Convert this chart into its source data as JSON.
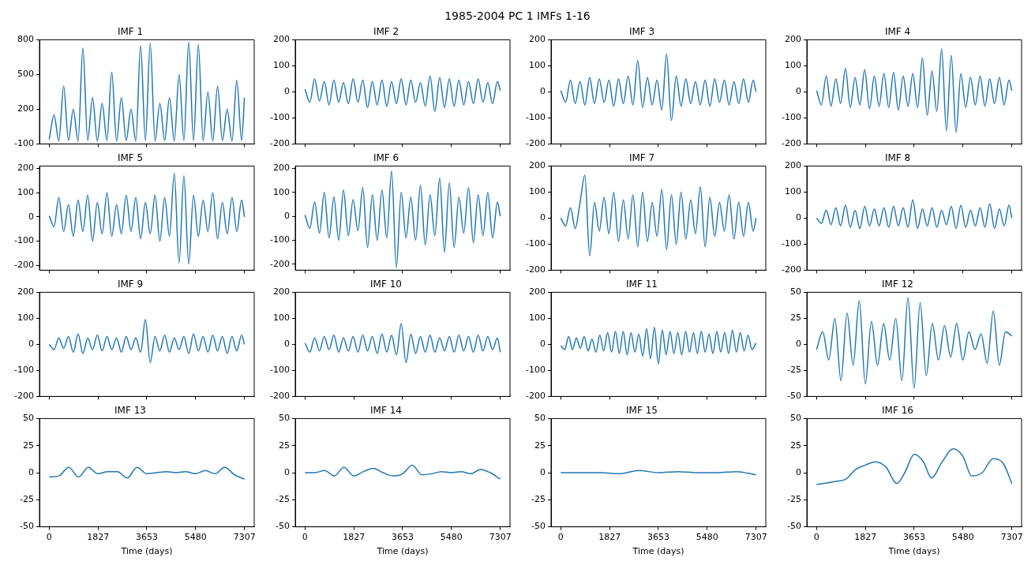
{
  "chart_data": [
    {
      "type": "other",
      "title": "1985-2004 PC 1 IMFs 1-16"
    },
    {
      "type": "line",
      "title": "IMF 1",
      "color": "#1f77b4",
      "tick_labels": "y",
      "xlim": [
        -365,
        7672
      ],
      "xticks": [
        0,
        1827,
        3653,
        5480,
        7307
      ],
      "ylim": [
        -100,
        800
      ],
      "yticks": [
        -100,
        200,
        500,
        800
      ],
      "x": [
        0,
        180,
        360,
        540,
        720,
        900,
        1080,
        1260,
        1440,
        1620,
        1800,
        1980,
        2160,
        2340,
        2520,
        2700,
        2880,
        3060,
        3240,
        3420,
        3600,
        3780,
        3960,
        4140,
        4320,
        4500,
        4680,
        4860,
        5040,
        5220,
        5400,
        5580,
        5760,
        5940,
        6120,
        6300,
        6480,
        6660,
        6840,
        7020,
        7200,
        7307
      ],
      "values": [
        -60,
        150,
        -75,
        400,
        -70,
        200,
        -75,
        730,
        -70,
        300,
        -75,
        250,
        -70,
        520,
        -75,
        300,
        -70,
        200,
        -75,
        750,
        -70,
        770,
        -75,
        250,
        -70,
        300,
        -75,
        500,
        -70,
        780,
        -75,
        760,
        -70,
        350,
        -75,
        400,
        -70,
        200,
        -75,
        450,
        -70,
        300
      ]
    },
    {
      "type": "line",
      "title": "IMF 2",
      "color": "#1f77b4",
      "tick_labels": "y",
      "xlim": [
        -365,
        7672
      ],
      "xticks": [
        0,
        1827,
        3653,
        5480,
        7307
      ],
      "ylim": [
        -200,
        200
      ],
      "yticks": [
        -200,
        -100,
        0,
        100,
        200
      ],
      "x": [
        0,
        180,
        360,
        540,
        720,
        900,
        1080,
        1260,
        1440,
        1620,
        1800,
        1980,
        2160,
        2340,
        2520,
        2700,
        2880,
        3060,
        3240,
        3420,
        3600,
        3780,
        3960,
        4140,
        4320,
        4500,
        4680,
        4860,
        5040,
        5220,
        5400,
        5580,
        5760,
        5940,
        6120,
        6300,
        6480,
        6660,
        6840,
        7020,
        7200,
        7307
      ],
      "values": [
        10,
        -40,
        50,
        -35,
        40,
        -50,
        45,
        -40,
        35,
        -45,
        50,
        -40,
        45,
        -60,
        40,
        -50,
        45,
        -55,
        40,
        -45,
        50,
        -50,
        45,
        -40,
        35,
        -55,
        60,
        -75,
        55,
        -60,
        50,
        -55,
        45,
        -50,
        40,
        -45,
        50,
        -40,
        35,
        -45,
        40,
        5
      ]
    },
    {
      "type": "line",
      "title": "IMF 3",
      "color": "#1f77b4",
      "tick_labels": "y",
      "xlim": [
        -365,
        7672
      ],
      "xticks": [
        0,
        1827,
        3653,
        5480,
        7307
      ],
      "ylim": [
        -200,
        200
      ],
      "yticks": [
        -200,
        -100,
        0,
        100,
        200
      ],
      "x": [
        0,
        180,
        360,
        540,
        720,
        900,
        1080,
        1260,
        1440,
        1620,
        1800,
        1980,
        2160,
        2340,
        2520,
        2700,
        2880,
        3060,
        3240,
        3420,
        3600,
        3780,
        3960,
        4140,
        4320,
        4500,
        4680,
        4860,
        5040,
        5220,
        5400,
        5580,
        5760,
        5940,
        6120,
        6300,
        6480,
        6660,
        6840,
        7020,
        7200,
        7307
      ],
      "values": [
        5,
        -40,
        45,
        -45,
        40,
        -50,
        55,
        -45,
        50,
        -40,
        45,
        -55,
        50,
        -45,
        60,
        -50,
        120,
        -60,
        55,
        -50,
        45,
        -70,
        145,
        -110,
        60,
        -55,
        50,
        -45,
        40,
        -50,
        45,
        -55,
        50,
        -40,
        45,
        -50,
        40,
        -45,
        50,
        -40,
        45,
        0
      ]
    },
    {
      "type": "line",
      "title": "IMF 4",
      "color": "#1f77b4",
      "tick_labels": "y",
      "xlim": [
        -365,
        7672
      ],
      "xticks": [
        0,
        1827,
        3653,
        5480,
        7307
      ],
      "ylim": [
        -200,
        200
      ],
      "yticks": [
        -200,
        -100,
        0,
        100,
        200
      ],
      "x": [
        0,
        180,
        360,
        540,
        720,
        900,
        1080,
        1260,
        1440,
        1620,
        1800,
        1980,
        2160,
        2340,
        2520,
        2700,
        2880,
        3060,
        3240,
        3420,
        3600,
        3780,
        3960,
        4140,
        4320,
        4500,
        4680,
        4860,
        5040,
        5220,
        5400,
        5580,
        5760,
        5940,
        6120,
        6300,
        6480,
        6660,
        6840,
        7020,
        7200,
        7307
      ],
      "values": [
        5,
        -50,
        60,
        -55,
        50,
        -45,
        90,
        -60,
        55,
        -50,
        85,
        -65,
        60,
        -55,
        70,
        -60,
        75,
        -70,
        60,
        -55,
        70,
        -60,
        130,
        -90,
        80,
        -75,
        165,
        -150,
        140,
        -155,
        70,
        -60,
        55,
        -50,
        60,
        -55,
        50,
        -45,
        55,
        -50,
        45,
        5
      ]
    },
    {
      "type": "line",
      "title": "IMF 5",
      "color": "#1f77b4",
      "tick_labels": "y",
      "xlim": [
        -365,
        7672
      ],
      "xticks": [
        0,
        1827,
        3653,
        5480,
        7307
      ],
      "ylim": [
        -220,
        210
      ],
      "yticks": [
        -200,
        -100,
        0,
        100,
        200
      ],
      "x": [
        0,
        180,
        360,
        540,
        720,
        900,
        1080,
        1260,
        1440,
        1620,
        1800,
        1980,
        2160,
        2340,
        2520,
        2700,
        2880,
        3060,
        3240,
        3420,
        3600,
        3780,
        3960,
        4140,
        4320,
        4500,
        4680,
        4860,
        5040,
        5220,
        5400,
        5580,
        5760,
        5940,
        6120,
        6300,
        6480,
        6660,
        6840,
        7020,
        7200,
        7307
      ],
      "values": [
        5,
        -40,
        80,
        -60,
        50,
        -80,
        70,
        -60,
        90,
        -100,
        60,
        -70,
        100,
        -80,
        50,
        -70,
        90,
        -60,
        80,
        -90,
        60,
        -70,
        90,
        -100,
        80,
        -80,
        180,
        -190,
        170,
        -195,
        90,
        -80,
        70,
        -60,
        100,
        -90,
        60,
        -70,
        80,
        -60,
        70,
        0
      ]
    },
    {
      "type": "line",
      "title": "IMF 6",
      "color": "#1f77b4",
      "tick_labels": "y",
      "xlim": [
        -365,
        7672
      ],
      "xticks": [
        0,
        1827,
        3653,
        5480,
        7307
      ],
      "ylim": [
        -225,
        210
      ],
      "yticks": [
        -200,
        -100,
        0,
        100,
        200
      ],
      "x": [
        0,
        180,
        360,
        540,
        720,
        900,
        1080,
        1260,
        1440,
        1620,
        1800,
        1980,
        2160,
        2340,
        2520,
        2700,
        2880,
        3060,
        3240,
        3420,
        3600,
        3780,
        3960,
        4140,
        4320,
        4500,
        4680,
        4860,
        5040,
        5220,
        5400,
        5580,
        5760,
        5940,
        6120,
        6300,
        6480,
        6660,
        6840,
        7020,
        7200,
        7307
      ],
      "values": [
        5,
        -50,
        60,
        -70,
        100,
        -90,
        80,
        -100,
        110,
        -80,
        70,
        -60,
        120,
        -130,
        90,
        -100,
        110,
        -90,
        190,
        -215,
        100,
        -90,
        80,
        -100,
        130,
        -120,
        90,
        -80,
        160,
        -150,
        140,
        -130,
        80,
        -70,
        120,
        -110,
        90,
        -80,
        100,
        -90,
        60,
        0
      ]
    },
    {
      "type": "line",
      "title": "IMF 7",
      "color": "#1f77b4",
      "tick_labels": "y",
      "xlim": [
        -365,
        7672
      ],
      "xticks": [
        0,
        1827,
        3653,
        5480,
        7307
      ],
      "ylim": [
        -200,
        200
      ],
      "yticks": [
        -200,
        -100,
        0,
        100,
        200
      ],
      "x": [
        0,
        180,
        360,
        540,
        720,
        900,
        1080,
        1260,
        1440,
        1620,
        1800,
        1980,
        2160,
        2340,
        2520,
        2700,
        2880,
        3060,
        3240,
        3420,
        3600,
        3780,
        3960,
        4140,
        4320,
        4500,
        4680,
        4860,
        5040,
        5220,
        5400,
        5580,
        5760,
        5940,
        6120,
        6300,
        6480,
        6660,
        6840,
        7020,
        7200,
        7307
      ],
      "values": [
        0,
        -30,
        40,
        -40,
        60,
        165,
        -145,
        60,
        -50,
        80,
        -60,
        100,
        -90,
        70,
        -80,
        90,
        -110,
        100,
        -90,
        60,
        -70,
        110,
        -120,
        90,
        -100,
        100,
        -80,
        70,
        -60,
        120,
        -110,
        80,
        -70,
        60,
        -50,
        90,
        -80,
        60,
        -70,
        60,
        -50,
        0
      ]
    },
    {
      "type": "line",
      "title": "IMF 8",
      "color": "#1f77b4",
      "tick_labels": "y",
      "xlim": [
        -365,
        7672
      ],
      "xticks": [
        0,
        1827,
        3653,
        5480,
        7307
      ],
      "ylim": [
        -200,
        200
      ],
      "yticks": [
        -200,
        -100,
        0,
        100,
        200
      ],
      "x": [
        0,
        180,
        360,
        540,
        720,
        900,
        1080,
        1260,
        1440,
        1620,
        1800,
        1980,
        2160,
        2340,
        2520,
        2700,
        2880,
        3060,
        3240,
        3420,
        3600,
        3780,
        3960,
        4140,
        4320,
        4500,
        4680,
        4860,
        5040,
        5220,
        5400,
        5580,
        5760,
        5940,
        6120,
        6300,
        6480,
        6660,
        6840,
        7020,
        7200,
        7307
      ],
      "values": [
        0,
        -20,
        30,
        -25,
        40,
        -30,
        50,
        -35,
        30,
        -40,
        45,
        -30,
        35,
        -30,
        40,
        -35,
        45,
        -30,
        40,
        -35,
        70,
        -40,
        35,
        -30,
        40,
        -35,
        30,
        -25,
        45,
        -40,
        50,
        -35,
        30,
        -30,
        40,
        -35,
        55,
        -40,
        35,
        -30,
        50,
        0
      ]
    },
    {
      "type": "line",
      "title": "IMF 9",
      "color": "#1f77b4",
      "tick_labels": "y",
      "xlim": [
        -365,
        7672
      ],
      "xticks": [
        0,
        1827,
        3653,
        5480,
        7307
      ],
      "ylim": [
        -200,
        200
      ],
      "yticks": [
        -200,
        -100,
        0,
        100,
        200
      ],
      "x": [
        0,
        180,
        360,
        540,
        720,
        900,
        1080,
        1260,
        1440,
        1620,
        1800,
        1980,
        2160,
        2340,
        2520,
        2700,
        2880,
        3060,
        3240,
        3420,
        3600,
        3780,
        3960,
        4140,
        4320,
        4500,
        4680,
        4860,
        5040,
        5220,
        5400,
        5580,
        5760,
        5940,
        6120,
        6300,
        6480,
        6660,
        6840,
        7020,
        7200,
        7307
      ],
      "values": [
        0,
        -20,
        25,
        -15,
        30,
        -30,
        40,
        -35,
        25,
        -20,
        35,
        -25,
        30,
        -20,
        25,
        -30,
        30,
        -20,
        25,
        -30,
        95,
        -70,
        30,
        -25,
        35,
        -30,
        25,
        -20,
        30,
        -35,
        40,
        -25,
        30,
        -30,
        35,
        -25,
        30,
        -35,
        30,
        -25,
        35,
        0
      ]
    },
    {
      "type": "line",
      "title": "IMF 10",
      "color": "#1f77b4",
      "tick_labels": "y",
      "xlim": [
        -365,
        7672
      ],
      "xticks": [
        0,
        1827,
        3653,
        5480,
        7307
      ],
      "ylim": [
        -200,
        200
      ],
      "yticks": [
        -200,
        -100,
        0,
        100,
        200
      ],
      "x": [
        0,
        180,
        360,
        540,
        720,
        900,
        1080,
        1260,
        1440,
        1620,
        1800,
        1980,
        2160,
        2340,
        2520,
        2700,
        2880,
        3060,
        3240,
        3420,
        3600,
        3780,
        3960,
        4140,
        4320,
        4500,
        4680,
        4860,
        5040,
        5220,
        5400,
        5580,
        5760,
        5940,
        6120,
        6300,
        6480,
        6660,
        6840,
        7020,
        7200,
        7307
      ],
      "values": [
        5,
        -30,
        25,
        -25,
        30,
        -20,
        35,
        -30,
        25,
        -25,
        30,
        -30,
        35,
        -25,
        30,
        -35,
        40,
        -30,
        35,
        -40,
        80,
        -70,
        40,
        -35,
        30,
        -30,
        35,
        -30,
        25,
        -25,
        30,
        -30,
        35,
        -25,
        30,
        -30,
        35,
        -25,
        30,
        -20,
        25,
        -30
      ]
    },
    {
      "type": "line",
      "title": "IMF 11",
      "color": "#1f77b4",
      "tick_labels": "y",
      "xlim": [
        -365,
        7672
      ],
      "xticks": [
        0,
        1827,
        3653,
        5480,
        7307
      ],
      "ylim": [
        -200,
        200
      ],
      "yticks": [
        -200,
        -100,
        0,
        100,
        200
      ],
      "x": [
        0,
        146,
        292,
        438,
        584,
        730,
        876,
        1022,
        1168,
        1314,
        1460,
        1606,
        1752,
        1898,
        2044,
        2190,
        2336,
        2482,
        2628,
        2774,
        2920,
        3066,
        3212,
        3358,
        3504,
        3650,
        3796,
        3942,
        4088,
        4234,
        4380,
        4526,
        4672,
        4818,
        4964,
        5110,
        5256,
        5402,
        5548,
        5694,
        5840,
        5986,
        6132,
        6278,
        6424,
        6570,
        6716,
        6862,
        7008,
        7154,
        7307
      ],
      "values": [
        -5,
        -20,
        30,
        -20,
        25,
        -15,
        30,
        -25,
        20,
        -30,
        35,
        -25,
        45,
        -30,
        50,
        -35,
        50,
        -40,
        45,
        -30,
        40,
        -45,
        60,
        -55,
        65,
        -75,
        55,
        -40,
        50,
        -35,
        45,
        -40,
        50,
        -30,
        45,
        -35,
        50,
        -30,
        40,
        -35,
        50,
        -30,
        45,
        -35,
        55,
        -30,
        45,
        -25,
        35,
        -20,
        5
      ]
    },
    {
      "type": "line",
      "title": "IMF 12",
      "color": "#1f77b4",
      "tick_labels": "y",
      "xlim": [
        -365,
        7672
      ],
      "xticks": [
        0,
        1827,
        3653,
        5480,
        7307
      ],
      "ylim": [
        -50,
        50
      ],
      "yticks": [
        -50,
        -25,
        0,
        25,
        50
      ],
      "x": [
        0,
        228,
        456,
        684,
        912,
        1140,
        1368,
        1596,
        1824,
        2052,
        2280,
        2508,
        2736,
        2964,
        3192,
        3420,
        3648,
        3876,
        4104,
        4332,
        4560,
        4788,
        5016,
        5244,
        5472,
        5700,
        5928,
        6156,
        6384,
        6612,
        6840,
        7068,
        7307
      ],
      "values": [
        -5,
        12,
        -15,
        25,
        -35,
        30,
        -20,
        42,
        -38,
        22,
        -20,
        20,
        -15,
        25,
        -35,
        45,
        -42,
        40,
        -30,
        20,
        -15,
        18,
        -12,
        20,
        -15,
        12,
        -5,
        10,
        -18,
        32,
        -20,
        12,
        8
      ]
    },
    {
      "type": "line",
      "title": "IMF 13",
      "color": "#1f77b4",
      "xlabel": "Time (days)",
      "xlim": [
        -365,
        7672
      ],
      "xticks": [
        0,
        1827,
        3653,
        5480,
        7307
      ],
      "ylim": [
        -50,
        50
      ],
      "yticks": [
        -50,
        -25,
        0,
        25,
        50
      ],
      "x": [
        0,
        365,
        730,
        1095,
        1460,
        1825,
        2190,
        2555,
        2920,
        3285,
        3650,
        4015,
        4380,
        4745,
        5110,
        5475,
        5840,
        6205,
        6570,
        6935,
        7307
      ],
      "values": [
        -4,
        -3,
        5,
        -4,
        5,
        -1,
        1,
        1,
        -5,
        5,
        -1,
        0,
        1,
        0,
        1,
        -1,
        2,
        -1,
        5,
        -2,
        -6
      ]
    },
    {
      "type": "line",
      "title": "IMF 14",
      "color": "#1f77b4",
      "xlabel": "Time (days)",
      "xlim": [
        -365,
        7672
      ],
      "xticks": [
        0,
        1827,
        3653,
        5480,
        7307
      ],
      "ylim": [
        -50,
        50
      ],
      "yticks": [
        -50,
        -25,
        0,
        25,
        50
      ],
      "x": [
        0,
        365,
        730,
        1095,
        1460,
        1825,
        2190,
        2555,
        2920,
        3285,
        3650,
        4015,
        4380,
        4745,
        5110,
        5475,
        5840,
        6205,
        6570,
        6935,
        7307
      ],
      "values": [
        0,
        0,
        2,
        -3,
        5,
        -3,
        1,
        4,
        0,
        -3,
        -1,
        7,
        -2,
        -1,
        1,
        0,
        1,
        -1,
        3,
        0,
        -6
      ]
    },
    {
      "type": "line",
      "title": "IMF 15",
      "color": "#1f77b4",
      "xlabel": "Time (days)",
      "xlim": [
        -365,
        7672
      ],
      "xticks": [
        0,
        1827,
        3653,
        5480,
        7307
      ],
      "ylim": [
        -50,
        50
      ],
      "yticks": [
        -50,
        -25,
        0,
        25,
        50
      ],
      "x": [
        0,
        730,
        1460,
        2190,
        2920,
        3650,
        4380,
        5110,
        5840,
        6570,
        7307
      ],
      "values": [
        0,
        0,
        0,
        -1,
        2,
        0,
        1,
        0,
        0,
        1,
        -2
      ]
    },
    {
      "type": "line",
      "title": "IMF 16",
      "color": "#1f77b4",
      "xlabel": "Time (days)",
      "xlim": [
        -365,
        7672
      ],
      "xticks": [
        0,
        1827,
        3653,
        5480,
        7307
      ],
      "ylim": [
        -50,
        50
      ],
      "yticks": [
        -50,
        -25,
        0,
        25,
        50
      ],
      "x": [
        0,
        730,
        1100,
        1460,
        1827,
        2200,
        2600,
        3000,
        3300,
        3653,
        4000,
        4300,
        4700,
        5100,
        5480,
        5800,
        6200,
        6600,
        7000,
        7307
      ],
      "values": [
        -11,
        -8,
        -6,
        3,
        7,
        10,
        5,
        -10,
        0,
        17,
        10,
        -5,
        10,
        22,
        15,
        -3,
        0,
        13,
        8,
        -10
      ]
    }
  ]
}
